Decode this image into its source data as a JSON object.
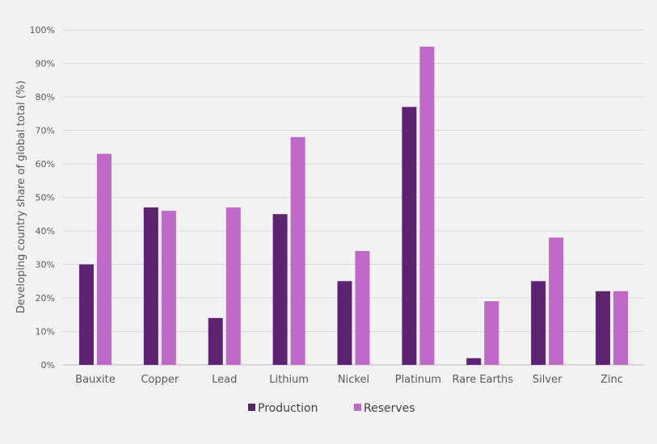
{
  "chart_data": {
    "type": "bar",
    "categories": [
      "Bauxite",
      "Copper",
      "Lead",
      "Lithium",
      "Nickel",
      "Platinum",
      "Rare Earths",
      "Silver",
      "Zinc"
    ],
    "series": [
      {
        "name": "Production",
        "color": "#5c2470",
        "values": [
          30,
          47,
          14,
          45,
          25,
          77,
          2,
          25,
          22
        ]
      },
      {
        "name": "Reserves",
        "color": "#bf68c8",
        "values": [
          63,
          46,
          47,
          68,
          34,
          95,
          19,
          38,
          22
        ]
      }
    ],
    "ylabel": "Developing country share of global total (%)",
    "ylim": [
      0,
      100
    ],
    "yticks": [
      "0%",
      "10%",
      "20%",
      "30%",
      "40%",
      "50%",
      "60%",
      "70%",
      "80%",
      "90%",
      "100%"
    ],
    "grid": true,
    "legend_position": "bottom"
  }
}
